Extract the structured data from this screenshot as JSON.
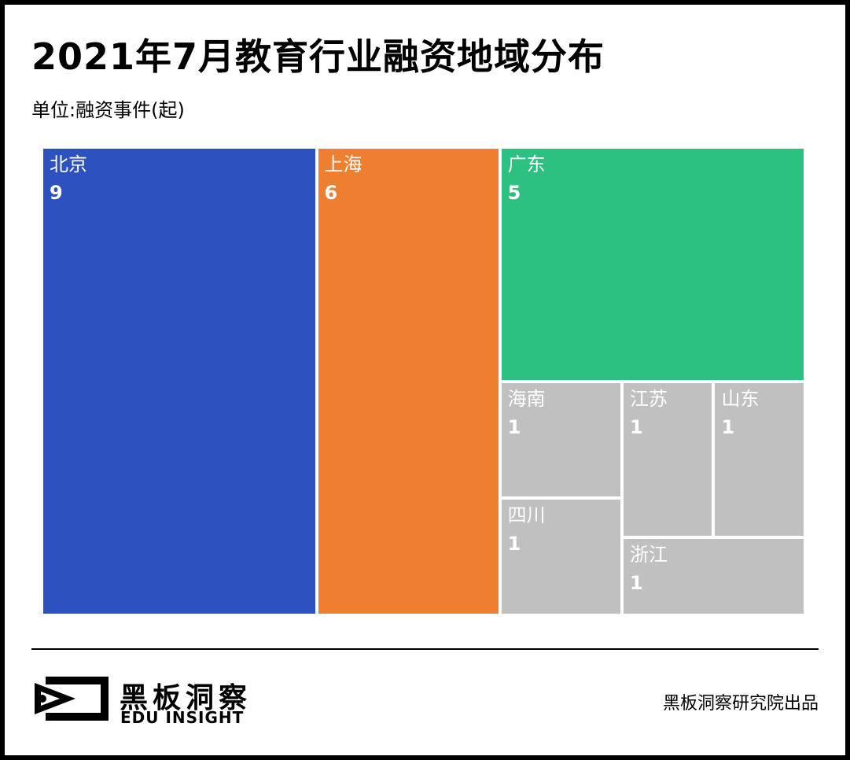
{
  "header": {
    "title": "2021年7月教育行业融资地域分布",
    "subtitle": "单位:融资事件(起)"
  },
  "chart_data": {
    "type": "treemap",
    "title": "2021年7月教育行业融资地域分布",
    "unit": "单位:融资事件(起)",
    "items": [
      {
        "name": "北京",
        "value": 9,
        "color": "#2d52c0"
      },
      {
        "name": "上海",
        "value": 6,
        "color": "#ee7f31"
      },
      {
        "name": "广东",
        "value": 5,
        "color": "#2cc181"
      },
      {
        "name": "海南",
        "value": 1,
        "color": "#c0c0c0"
      },
      {
        "name": "四川",
        "value": 1,
        "color": "#c0c0c0"
      },
      {
        "name": "江苏",
        "value": 1,
        "color": "#c0c0c0"
      },
      {
        "name": "山东",
        "value": 1,
        "color": "#c0c0c0"
      },
      {
        "name": "浙江",
        "value": 1,
        "color": "#c0c0c0"
      }
    ]
  },
  "footer": {
    "brand_cn": "黑板洞察",
    "brand_en": "EDU INSIGHT",
    "credit": "黑板洞察研究院出品"
  }
}
